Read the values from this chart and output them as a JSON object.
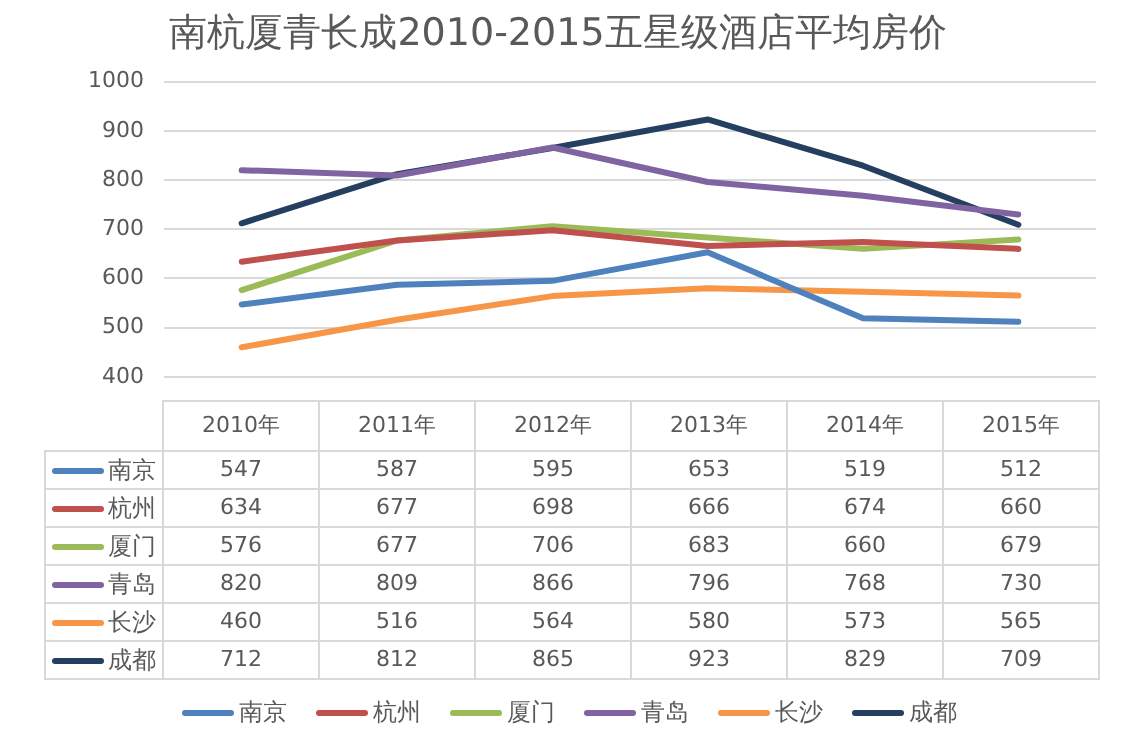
{
  "chart_data": {
    "type": "line",
    "title": "南杭厦青长成2010-2015五星级酒店平均房价",
    "categories": [
      "2010年",
      "2011年",
      "2012年",
      "2013年",
      "2014年",
      "2015年"
    ],
    "series": [
      {
        "name": "南京",
        "color": "#4f81bd",
        "values": [
          547,
          587,
          595,
          653,
          519,
          512
        ]
      },
      {
        "name": "杭州",
        "color": "#c0504d",
        "values": [
          634,
          677,
          698,
          666,
          674,
          660
        ]
      },
      {
        "name": "厦门",
        "color": "#9bbb59",
        "values": [
          576,
          677,
          706,
          683,
          660,
          679
        ]
      },
      {
        "name": "青岛",
        "color": "#8064a2",
        "values": [
          820,
          809,
          866,
          796,
          768,
          730
        ]
      },
      {
        "name": "长沙",
        "color": "#f79646",
        "values": [
          460,
          516,
          564,
          580,
          573,
          565
        ]
      },
      {
        "name": "成都",
        "color": "#243f60",
        "values": [
          712,
          812,
          865,
          923,
          829,
          709
        ]
      }
    ],
    "ylim": [
      400,
      1000
    ],
    "yticks": [
      400,
      500,
      600,
      700,
      800,
      900,
      1000
    ],
    "grid": "y",
    "legend": "bottom",
    "marker": "none",
    "line_style": "solid",
    "data_labels": true
  }
}
